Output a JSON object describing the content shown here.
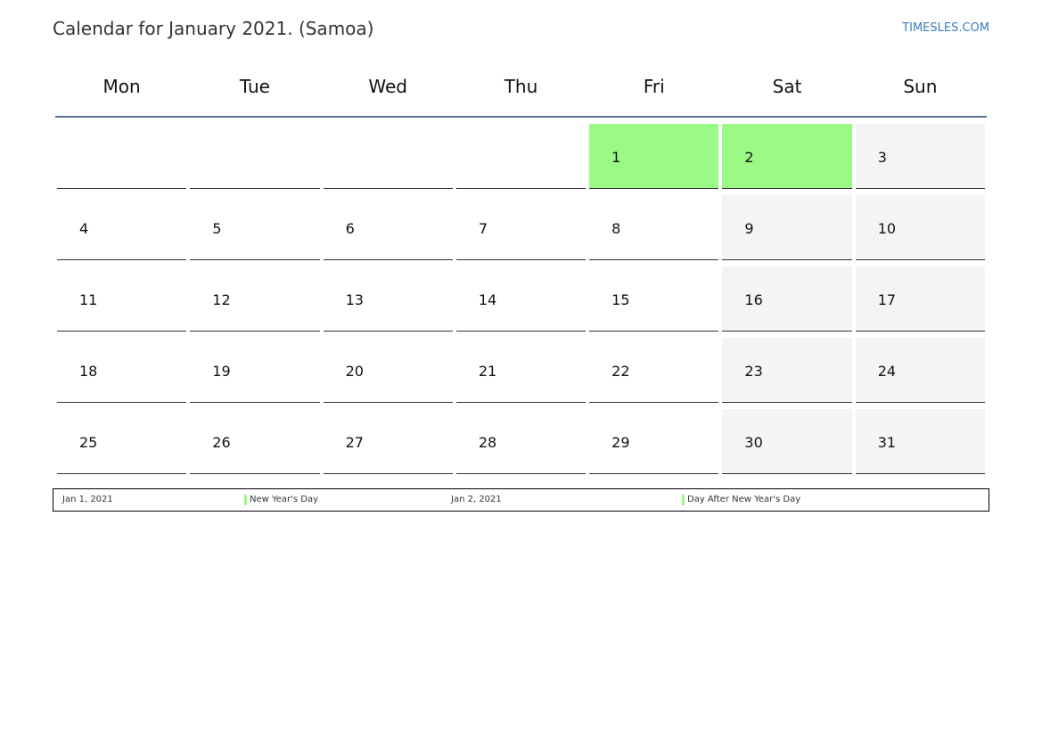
{
  "header": {
    "title": "Calendar for January 2021. (Samoa)",
    "site": "TIMESLES.COM"
  },
  "weekdays": [
    "Mon",
    "Tue",
    "Wed",
    "Thu",
    "Fri",
    "Sat",
    "Sun"
  ],
  "colors": {
    "holiday": "#9afa85",
    "weekend": "#f4f4f4",
    "header_rule": "#5b7395",
    "link": "#3a7bbf"
  },
  "weeks": [
    [
      null,
      null,
      null,
      null,
      {
        "day": "1",
        "holiday": true
      },
      {
        "day": "2",
        "holiday": true
      },
      {
        "day": "3"
      }
    ],
    [
      {
        "day": "4"
      },
      {
        "day": "5"
      },
      {
        "day": "6"
      },
      {
        "day": "7"
      },
      {
        "day": "8"
      },
      {
        "day": "9"
      },
      {
        "day": "10"
      }
    ],
    [
      {
        "day": "11"
      },
      {
        "day": "12"
      },
      {
        "day": "13"
      },
      {
        "day": "14"
      },
      {
        "day": "15"
      },
      {
        "day": "16"
      },
      {
        "day": "17"
      }
    ],
    [
      {
        "day": "18"
      },
      {
        "day": "19"
      },
      {
        "day": "20"
      },
      {
        "day": "21"
      },
      {
        "day": "22"
      },
      {
        "day": "23"
      },
      {
        "day": "24"
      }
    ],
    [
      {
        "day": "25"
      },
      {
        "day": "26"
      },
      {
        "day": "27"
      },
      {
        "day": "28"
      },
      {
        "day": "29"
      },
      {
        "day": "30"
      },
      {
        "day": "31"
      }
    ]
  ],
  "holidays": [
    {
      "date": "Jan 1, 2021",
      "name": "New Year's Day"
    },
    {
      "date": "Jan 2, 2021",
      "name": "Day After New Year's Day"
    }
  ]
}
